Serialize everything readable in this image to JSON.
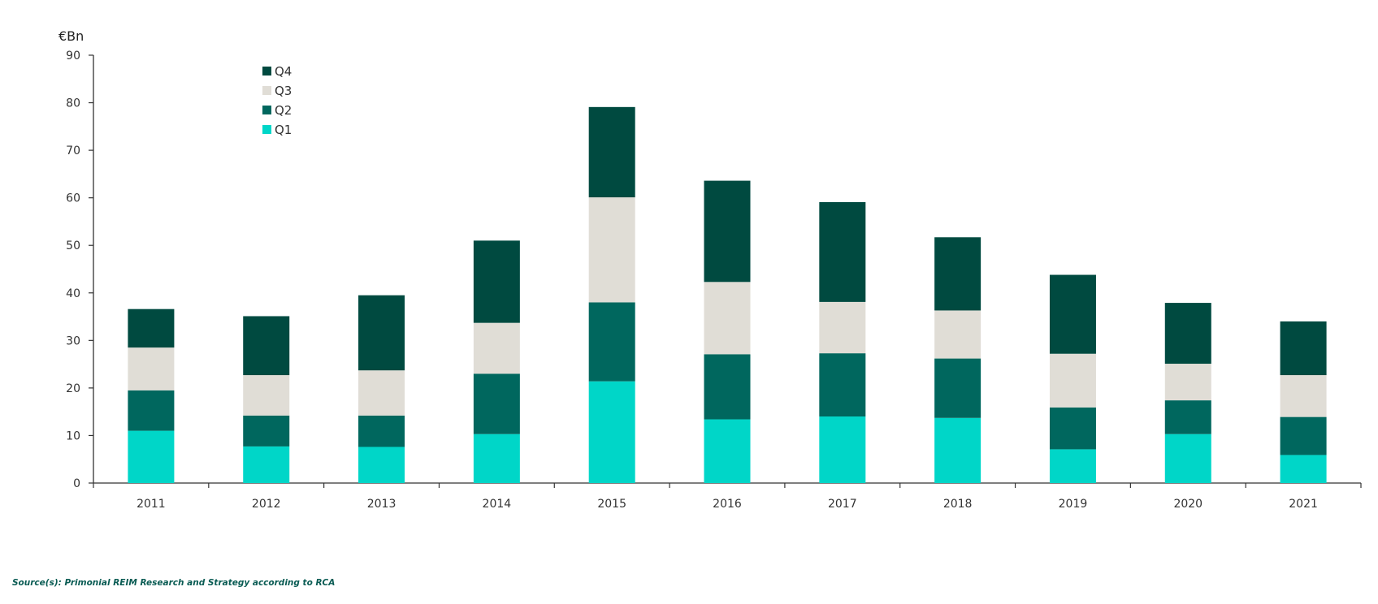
{
  "chart_data": {
    "type": "bar",
    "stacked": true,
    "ylabel": "€Bn",
    "ylim": [
      0,
      90
    ],
    "yticks": [
      0,
      10,
      20,
      30,
      40,
      50,
      60,
      70,
      80,
      90
    ],
    "grid": false,
    "legend_position": "top-left",
    "categories": [
      "2011",
      "2012",
      "2013",
      "2014",
      "2015",
      "2016",
      "2017",
      "2018",
      "2019",
      "2020",
      "2021"
    ],
    "series": [
      {
        "name": "Q1",
        "color": "#00d6c8",
        "values": [
          11.0,
          7.7,
          7.6,
          10.3,
          21.4,
          13.4,
          14.0,
          13.7,
          7.1,
          10.3,
          5.9
        ]
      },
      {
        "name": "Q2",
        "color": "#00675e",
        "values": [
          8.5,
          6.5,
          6.6,
          12.7,
          16.6,
          13.7,
          13.3,
          12.5,
          8.8,
          7.1,
          8.0
        ]
      },
      {
        "name": "Q3",
        "color": "#e0ddd6",
        "values": [
          9.0,
          8.5,
          9.5,
          10.7,
          22.1,
          15.2,
          10.8,
          10.1,
          11.3,
          7.7,
          8.8
        ]
      },
      {
        "name": "Q4",
        "color": "#004a40",
        "values": [
          8.1,
          12.4,
          15.8,
          17.3,
          19.0,
          21.3,
          21.0,
          15.4,
          16.6,
          12.8,
          11.3
        ]
      }
    ],
    "legend_order": [
      "Q4",
      "Q3",
      "Q2",
      "Q1"
    ]
  },
  "source": "Source(s): Primonial REIM Research and Strategy according to RCA"
}
